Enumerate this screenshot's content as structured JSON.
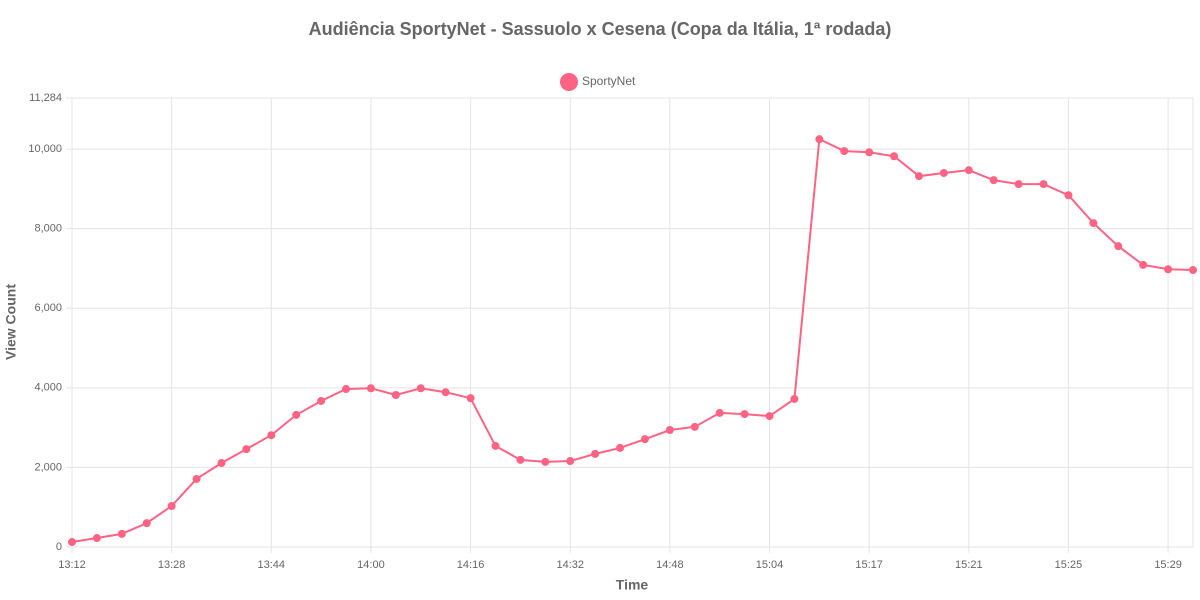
{
  "chart_data": {
    "type": "line",
    "title": "Audiência SportyNet - Sassuolo x Cesena (Copa da Itália, 1ª rodada)",
    "x_label": "Time",
    "y_label": "View Count",
    "categories": [
      "13:12",
      null,
      null,
      null,
      "13:28",
      null,
      null,
      null,
      "13:44",
      null,
      null,
      null,
      "14:00",
      null,
      null,
      null,
      "14:16",
      null,
      null,
      null,
      "14:32",
      null,
      null,
      null,
      "14:48",
      null,
      null,
      null,
      "15:04",
      null,
      null,
      null,
      "15:17",
      null,
      null,
      null,
      "15:21",
      null,
      null,
      null,
      "15:25",
      null,
      null,
      null,
      "15:29",
      null
    ],
    "series": [
      {
        "name": "SportyNet",
        "color": "#ff6384",
        "values": [
          125,
          225,
          330,
          600,
          1030,
          1710,
          2110,
          2460,
          2810,
          3320,
          3670,
          3970,
          3990,
          3820,
          3990,
          3890,
          3740,
          2540,
          2190,
          2140,
          2160,
          2340,
          2490,
          2710,
          2940,
          3020,
          3370,
          3340,
          3290,
          3720,
          10250,
          9950,
          9920,
          9820,
          9320,
          9400,
          9470,
          9220,
          9120,
          9120,
          8840,
          8140,
          7560,
          7090,
          6980,
          6960
        ]
      }
    ],
    "ylim": [
      0,
      11284
    ],
    "yticks": [
      0,
      {
        "value": 2000,
        "label": "2,000"
      },
      {
        "value": 4000,
        "label": "4,000"
      },
      {
        "value": 6000,
        "label": "6,000"
      },
      {
        "value": 8000,
        "label": "8,000"
      },
      {
        "value": 10000,
        "label": "10,000"
      },
      {
        "value": 11284,
        "label": "11,284"
      }
    ],
    "grid": true,
    "legend": "top"
  }
}
